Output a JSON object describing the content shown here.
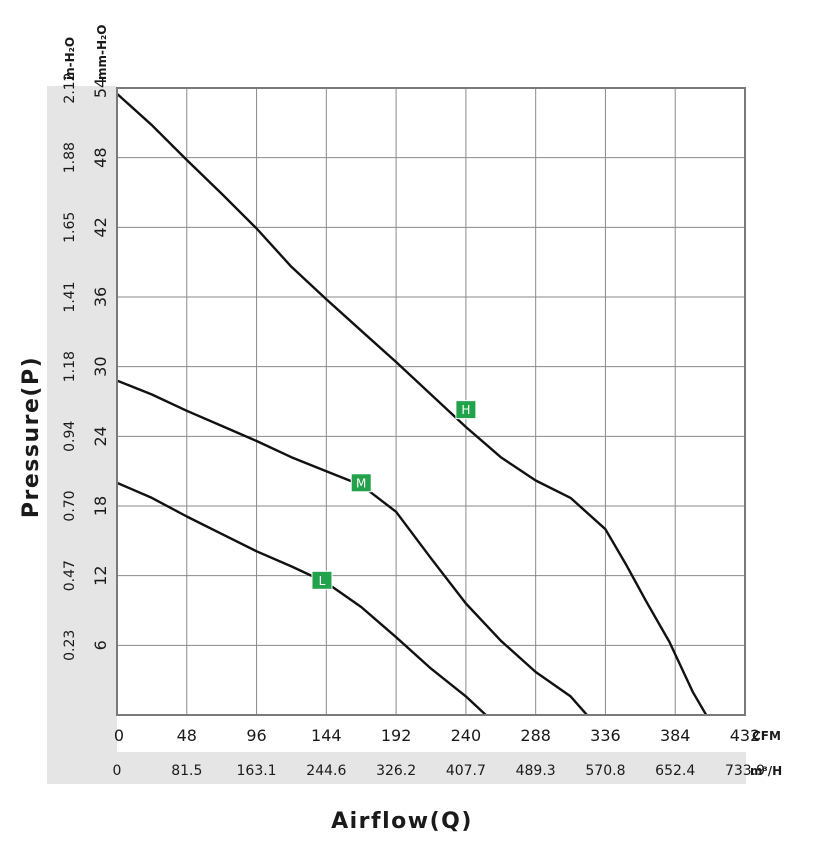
{
  "chart_data": {
    "type": "line",
    "xlabel": "Airflow(Q)",
    "ylabel": "Pressure(P)",
    "x_unit_primary": "CFM",
    "x_unit_secondary": "m³/H",
    "y_unit_primary": "mm-H₂O",
    "y_unit_secondary": "in-H₂O",
    "xlim": [
      0,
      432
    ],
    "ylim": [
      0,
      54
    ],
    "grid": true,
    "x_ticks": [
      "0",
      "48",
      "96",
      "144",
      "192",
      "240",
      "288",
      "336",
      "384",
      "432"
    ],
    "x_ticks_secondary": [
      "0",
      "81.5",
      "163.1",
      "244.6",
      "326.2",
      "407.7",
      "489.3",
      "570.8",
      "652.4",
      "733.9"
    ],
    "y_ticks": [
      "6",
      "12",
      "18",
      "24",
      "30",
      "36",
      "42",
      "48",
      "54"
    ],
    "y_ticks_secondary": [
      "0.23",
      "0.47",
      "0.70",
      "0.94",
      "1.18",
      "1.41",
      "1.65",
      "1.88",
      "2.12"
    ],
    "series": [
      {
        "name": "H",
        "x": [
          0,
          24,
          48,
          72,
          96,
          120,
          144,
          168,
          192,
          216,
          240,
          264,
          288,
          312,
          336,
          350,
          364,
          380,
          396,
          410,
          422
        ],
        "y": [
          53.5,
          50.8,
          47.8,
          44.9,
          41.9,
          38.6,
          35.8,
          33.1,
          30.4,
          27.6,
          24.8,
          22.2,
          20.2,
          18.7,
          16.0,
          13.0,
          9.8,
          6.3,
          2.0,
          -1.0,
          -4.3
        ],
        "marker_at": [
          240,
          26.3
        ]
      },
      {
        "name": "M",
        "x": [
          0,
          24,
          48,
          72,
          96,
          120,
          144,
          168,
          192,
          216,
          240,
          264,
          288,
          312,
          336,
          357
        ],
        "y": [
          28.8,
          27.6,
          26.2,
          24.9,
          23.6,
          22.2,
          21.0,
          19.8,
          17.5,
          13.5,
          9.6,
          6.4,
          3.7,
          1.6,
          -1.8,
          -4.4
        ],
        "marker_at": [
          168,
          20.0
        ]
      },
      {
        "name": "L",
        "x": [
          0,
          24,
          48,
          72,
          96,
          120,
          144,
          168,
          192,
          216,
          240,
          264,
          288,
          303
        ],
        "y": [
          20.0,
          18.7,
          17.1,
          15.6,
          14.1,
          12.8,
          11.4,
          9.3,
          6.7,
          4.0,
          1.6,
          -1.2,
          -3.0,
          -4.1
        ],
        "marker_at": [
          141,
          11.6
        ]
      }
    ],
    "marker_color": "#22a24a"
  }
}
